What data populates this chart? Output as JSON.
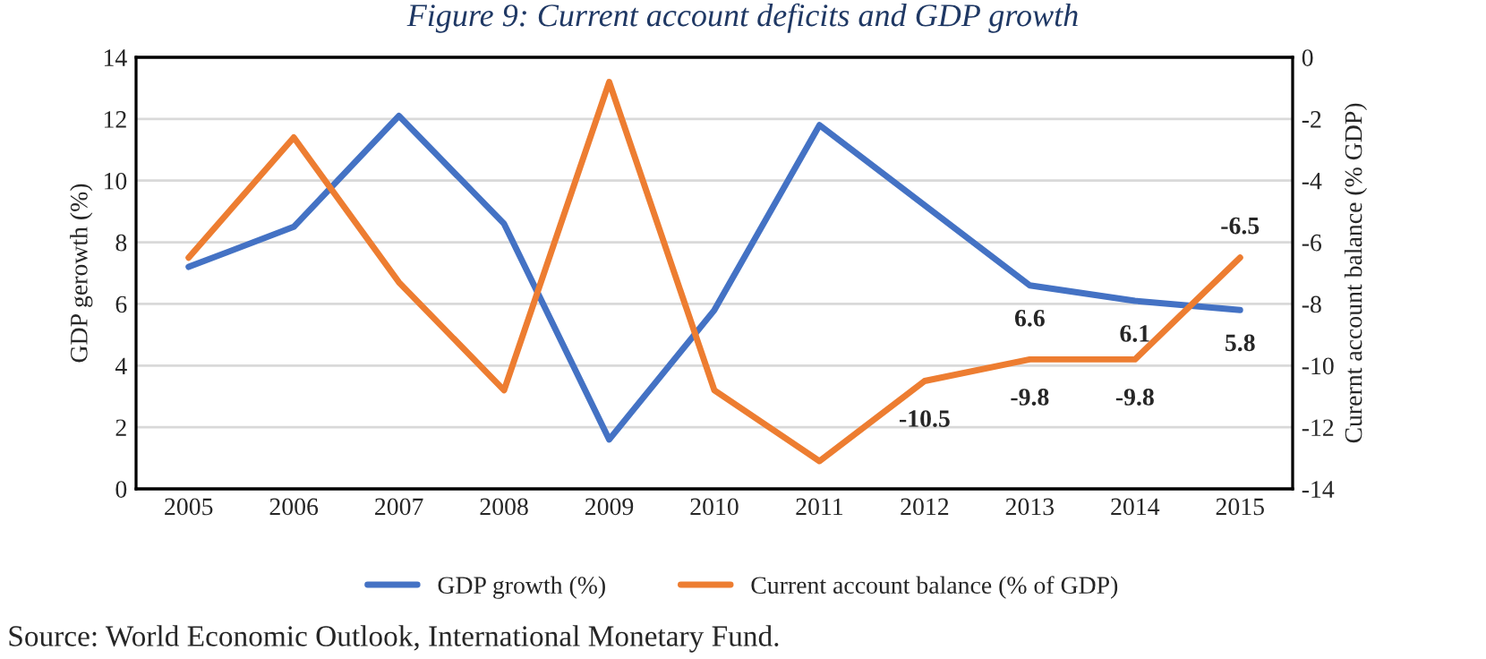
{
  "chart_data": {
    "type": "line",
    "title": "Figure 9: Current account deficits and GDP growth",
    "ylabel": "GDP gerowth (%)",
    "y2label": "Curernt account balance (% GDP)",
    "annotations": [
      "Source: World Economic Outlook, International Monetary Fund."
    ],
    "categories": [
      "2005",
      "2006",
      "2007",
      "2008",
      "2009",
      "2010",
      "2011",
      "2012",
      "2013",
      "2014",
      "2015"
    ],
    "series": [
      {
        "name": "GDP growth (%)",
        "color": "#4472c4",
        "values": [
          7.2,
          8.5,
          12.1,
          8.6,
          1.6,
          5.8,
          11.8,
          9.2,
          6.6,
          6.1,
          5.8
        ],
        "value_labels": [
          null,
          null,
          null,
          null,
          null,
          null,
          null,
          null,
          "6.6",
          "6.1",
          "5.8"
        ]
      },
      {
        "name": "Current account balance (% of GDP)",
        "color": "#ed7d31",
        "axis": "y2",
        "values": [
          -6.5,
          -2.6,
          -7.3,
          -10.8,
          -0.8,
          -10.8,
          -13.1,
          -10.5,
          -9.8,
          -9.8,
          -6.5
        ],
        "value_labels": [
          null,
          null,
          null,
          null,
          null,
          null,
          null,
          "-10.5",
          "-9.8",
          "-9.8",
          "-6.5"
        ]
      }
    ],
    "ylim": [
      0,
      14
    ],
    "yticks": [
      0,
      2,
      4,
      6,
      8,
      10,
      12,
      14
    ],
    "y2lim": [
      -14,
      0
    ],
    "y2ticks": [
      -14,
      -12,
      -10,
      -8,
      -6,
      -4,
      -2,
      0
    ],
    "grid": "y",
    "legend": "bottom",
    "marker": "none",
    "line_style": "solid"
  }
}
